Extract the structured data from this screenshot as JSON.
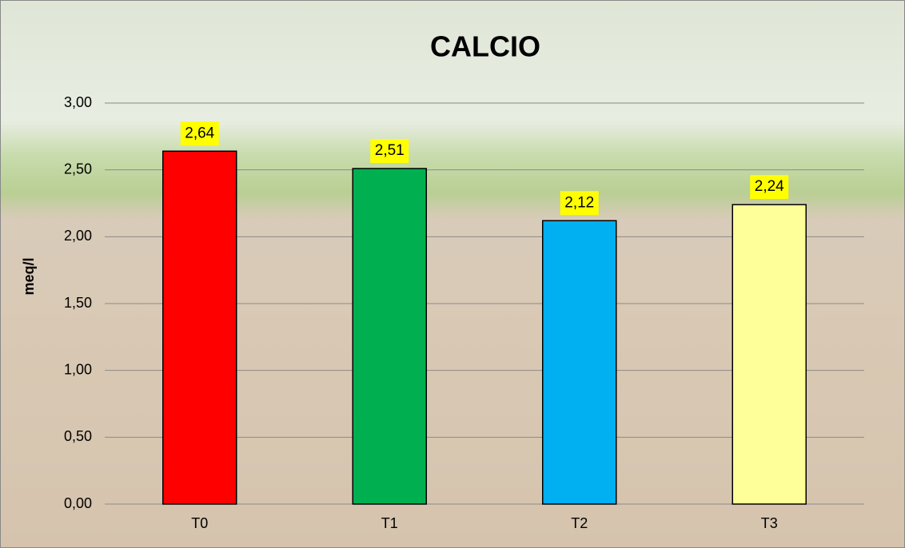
{
  "chart_data": {
    "type": "bar",
    "title": "CALCIO",
    "y_label": "meq/l",
    "categories": [
      "T0",
      "T1",
      "T2",
      "T3"
    ],
    "values": [
      2.64,
      2.51,
      2.12,
      2.24
    ],
    "value_labels": [
      "2,64",
      "2,51",
      "2,12",
      "2,24"
    ],
    "colors": [
      "#ff0000",
      "#00b050",
      "#00b0f0",
      "#ffff99"
    ],
    "ylim": [
      0,
      3
    ],
    "yticks": [
      {
        "value": 0,
        "label": "0,00"
      },
      {
        "value": 0.5,
        "label": "0,50"
      },
      {
        "value": 1,
        "label": "1,00"
      },
      {
        "value": 1.5,
        "label": "1,50"
      },
      {
        "value": 2,
        "label": "2,00"
      },
      {
        "value": 2.5,
        "label": "2,50"
      },
      {
        "value": 3,
        "label": "3,00"
      }
    ],
    "grid": true
  }
}
